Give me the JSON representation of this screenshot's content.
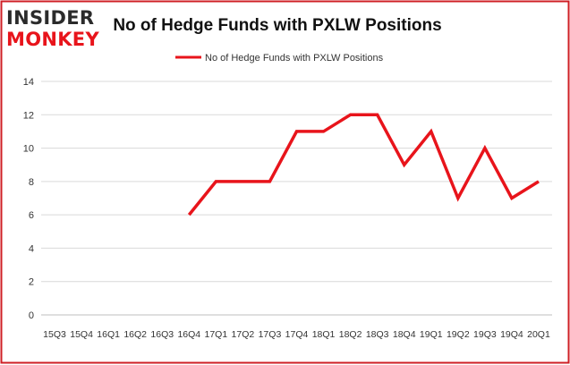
{
  "logo": {
    "line1": "INSIDER",
    "line2": "MONKEY"
  },
  "colors": {
    "series": "#e8141b",
    "frame": "#cf1f25",
    "grid": "#d9d9d9",
    "text": "#333333"
  },
  "chart_data": {
    "type": "line",
    "title": "No of Hedge Funds with PXLW Positions",
    "xlabel": "",
    "ylabel": "",
    "legend": "top-center",
    "grid": true,
    "ylim": [
      0,
      14
    ],
    "yticks": [
      0,
      2,
      4,
      6,
      8,
      10,
      12,
      14
    ],
    "x": [
      "15Q3",
      "15Q4",
      "16Q1",
      "16Q2",
      "16Q3",
      "16Q4",
      "17Q1",
      "17Q2",
      "17Q3",
      "17Q4",
      "18Q1",
      "18Q2",
      "18Q3",
      "18Q4",
      "19Q1",
      "19Q2",
      "19Q3",
      "19Q4",
      "20Q1"
    ],
    "series": [
      {
        "name": "No of Hedge Funds with PXLW Positions",
        "values": [
          null,
          null,
          null,
          null,
          null,
          6,
          8,
          8,
          8,
          11,
          11,
          12,
          12,
          9,
          11,
          7,
          10,
          7,
          8
        ]
      }
    ]
  }
}
